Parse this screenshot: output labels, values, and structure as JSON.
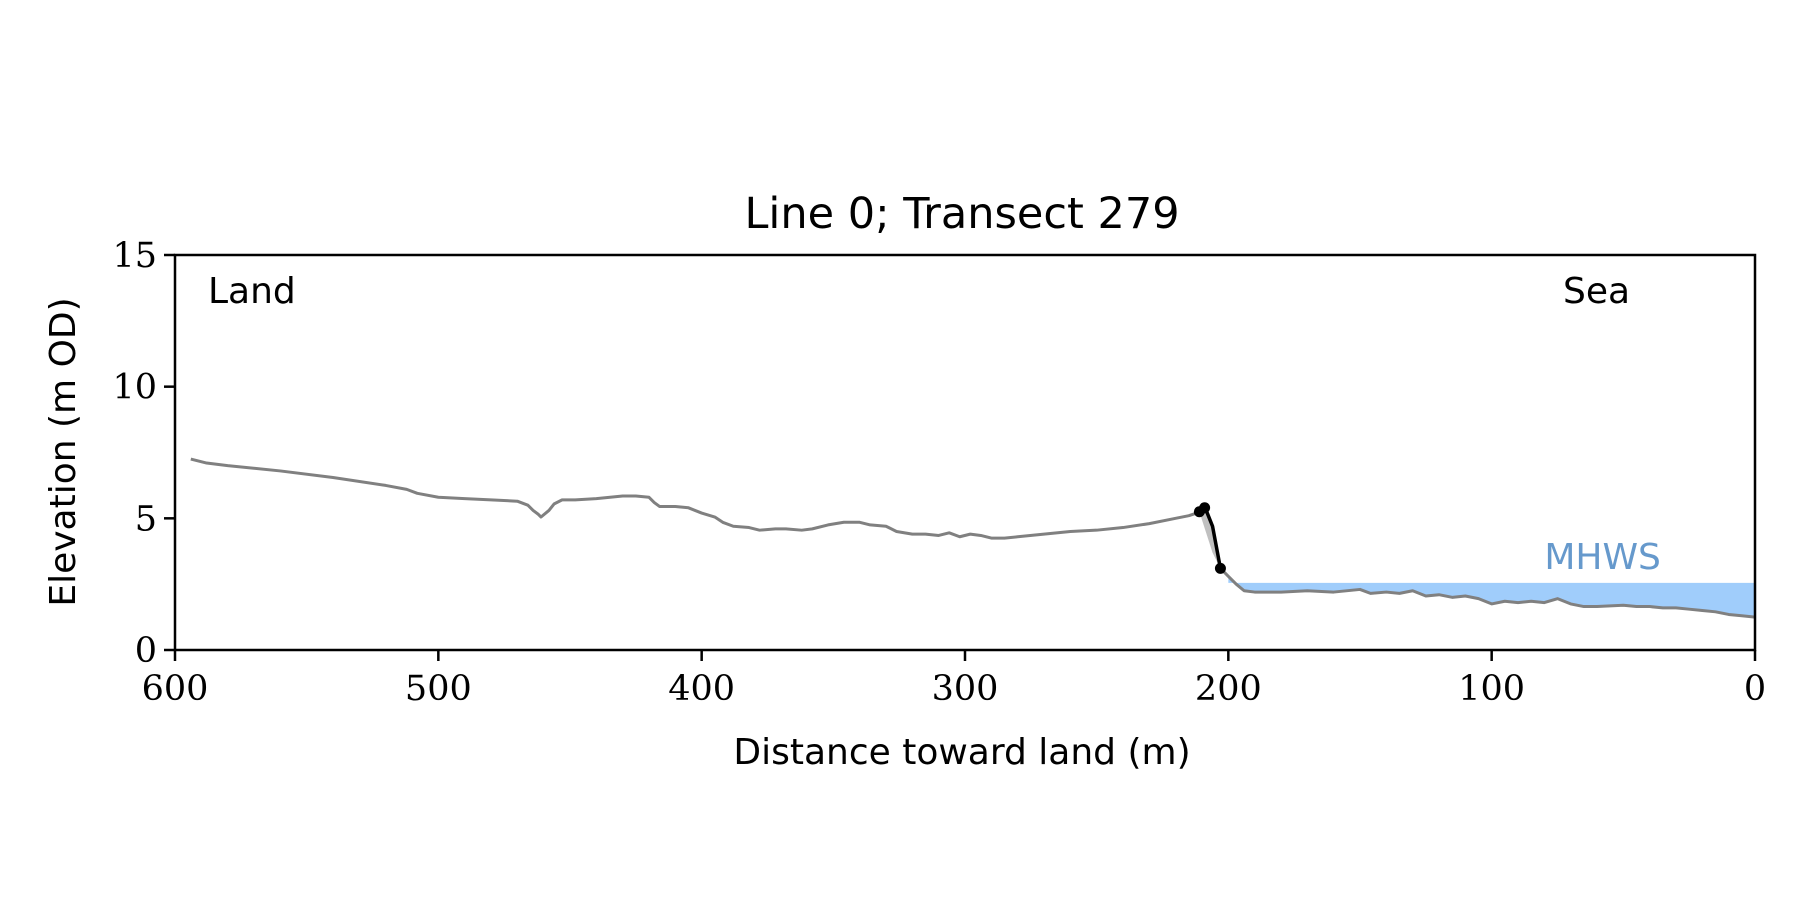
{
  "chart_data": {
    "type": "line",
    "title": "Line 0; Transect 279",
    "xlabel": "Distance toward land (m)",
    "ylabel": "Elevation (m OD)",
    "xlim": [
      600,
      0
    ],
    "ylim": [
      0,
      15
    ],
    "x_inverted": true,
    "xticks": [
      600,
      500,
      400,
      300,
      200,
      100,
      0
    ],
    "yticks": [
      0,
      5,
      10,
      15
    ],
    "grid": false,
    "annotations": {
      "land": "Land",
      "sea": "Sea",
      "mhws": "MHWS"
    },
    "mhws": {
      "elevation": 2.55,
      "x_from": 200,
      "x_to": 0,
      "fill_color": "#a0cdfb",
      "text_color": "#6699cc"
    },
    "profile": {
      "color": "#808080",
      "points": [
        [
          594,
          7.25
        ],
        [
          588,
          7.1
        ],
        [
          580,
          7.0
        ],
        [
          560,
          6.8
        ],
        [
          540,
          6.55
        ],
        [
          520,
          6.25
        ],
        [
          512,
          6.1
        ],
        [
          508,
          5.95
        ],
        [
          500,
          5.8
        ],
        [
          490,
          5.75
        ],
        [
          480,
          5.7
        ],
        [
          470,
          5.65
        ],
        [
          466,
          5.5
        ],
        [
          464,
          5.3
        ],
        [
          462,
          5.15
        ],
        [
          461,
          5.05
        ],
        [
          458,
          5.3
        ],
        [
          456,
          5.55
        ],
        [
          453,
          5.7
        ],
        [
          448,
          5.7
        ],
        [
          440,
          5.75
        ],
        [
          430,
          5.85
        ],
        [
          425,
          5.85
        ],
        [
          420,
          5.8
        ],
        [
          418,
          5.6
        ],
        [
          416,
          5.45
        ],
        [
          410,
          5.45
        ],
        [
          405,
          5.4
        ],
        [
          400,
          5.2
        ],
        [
          395,
          5.05
        ],
        [
          392,
          4.85
        ],
        [
          388,
          4.7
        ],
        [
          382,
          4.65
        ],
        [
          378,
          4.55
        ],
        [
          372,
          4.6
        ],
        [
          368,
          4.6
        ],
        [
          362,
          4.55
        ],
        [
          358,
          4.6
        ],
        [
          352,
          4.75
        ],
        [
          346,
          4.85
        ],
        [
          340,
          4.85
        ],
        [
          336,
          4.75
        ],
        [
          330,
          4.7
        ],
        [
          326,
          4.5
        ],
        [
          320,
          4.4
        ],
        [
          315,
          4.4
        ],
        [
          310,
          4.35
        ],
        [
          306,
          4.45
        ],
        [
          302,
          4.3
        ],
        [
          298,
          4.4
        ],
        [
          294,
          4.35
        ],
        [
          290,
          4.25
        ],
        [
          285,
          4.25
        ],
        [
          280,
          4.3
        ],
        [
          270,
          4.4
        ],
        [
          260,
          4.5
        ],
        [
          250,
          4.55
        ],
        [
          240,
          4.65
        ],
        [
          230,
          4.8
        ],
        [
          220,
          5.0
        ],
        [
          215,
          5.1
        ],
        [
          212,
          5.2
        ],
        [
          211,
          5.25
        ]
      ]
    },
    "cliff": {
      "color": "#000000",
      "shade_color": "#c0c0c0",
      "points": [
        [
          211,
          5.25
        ],
        [
          210,
          5.35
        ],
        [
          209,
          5.4
        ],
        [
          208,
          5.2
        ],
        [
          206,
          4.7
        ],
        [
          203,
          3.1
        ]
      ],
      "markers": [
        [
          211,
          5.25
        ],
        [
          209,
          5.4
        ],
        [
          203,
          3.1
        ]
      ]
    },
    "foreshore": {
      "color": "#808080",
      "points": [
        [
          203,
          3.1
        ],
        [
          200,
          2.8
        ],
        [
          197,
          2.5
        ],
        [
          194,
          2.25
        ],
        [
          190,
          2.2
        ],
        [
          180,
          2.2
        ],
        [
          170,
          2.25
        ],
        [
          160,
          2.2
        ],
        [
          150,
          2.3
        ],
        [
          146,
          2.15
        ],
        [
          140,
          2.2
        ],
        [
          135,
          2.15
        ],
        [
          130,
          2.25
        ],
        [
          125,
          2.05
        ],
        [
          120,
          2.1
        ],
        [
          115,
          2.0
        ],
        [
          110,
          2.05
        ],
        [
          105,
          1.95
        ],
        [
          100,
          1.75
        ],
        [
          95,
          1.85
        ],
        [
          90,
          1.8
        ],
        [
          85,
          1.85
        ],
        [
          80,
          1.8
        ],
        [
          75,
          1.95
        ],
        [
          70,
          1.75
        ],
        [
          65,
          1.65
        ],
        [
          60,
          1.65
        ],
        [
          50,
          1.7
        ],
        [
          45,
          1.65
        ],
        [
          40,
          1.65
        ],
        [
          35,
          1.6
        ],
        [
          30,
          1.6
        ],
        [
          25,
          1.55
        ],
        [
          20,
          1.5
        ],
        [
          15,
          1.45
        ],
        [
          10,
          1.35
        ],
        [
          5,
          1.3
        ],
        [
          0,
          1.25
        ]
      ]
    }
  }
}
